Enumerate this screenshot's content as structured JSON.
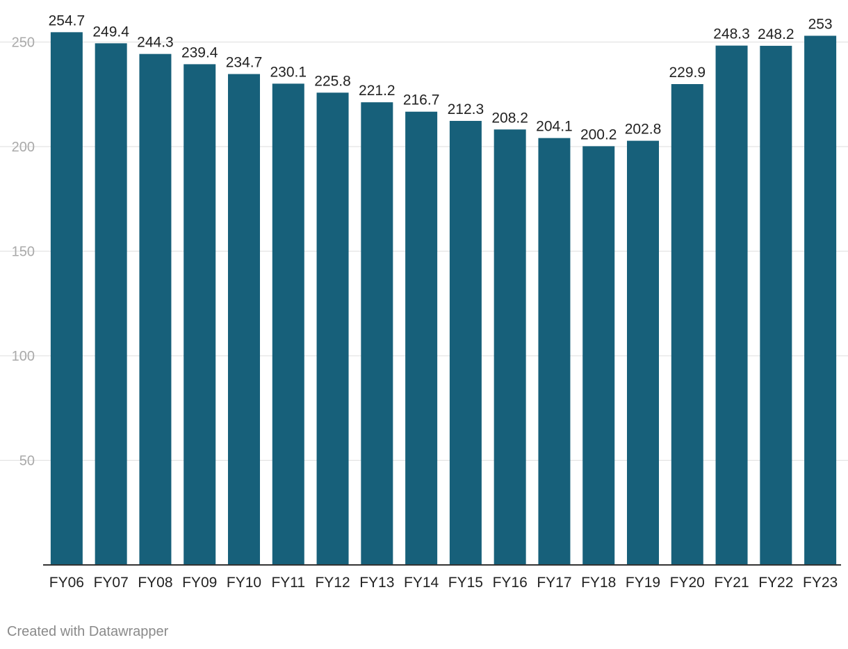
{
  "chart_data": {
    "type": "bar",
    "categories": [
      "FY06",
      "FY07",
      "FY08",
      "FY09",
      "FY10",
      "FY11",
      "FY12",
      "FY13",
      "FY14",
      "FY15",
      "FY16",
      "FY17",
      "FY18",
      "FY19",
      "FY20",
      "FY21",
      "FY22",
      "FY23"
    ],
    "values": [
      254.7,
      249.4,
      244.3,
      239.4,
      234.7,
      230.1,
      225.8,
      221.2,
      216.7,
      212.3,
      208.2,
      204.1,
      200.2,
      202.8,
      229.9,
      248.3,
      248.2,
      253
    ],
    "value_labels": [
      "254.7",
      "249.4",
      "244.3",
      "239.4",
      "234.7",
      "230.1",
      "225.8",
      "221.2",
      "216.7",
      "212.3",
      "208.2",
      "204.1",
      "200.2",
      "202.8",
      "229.9",
      "248.3",
      "248.2",
      "253"
    ],
    "y_ticks": [
      50,
      100,
      150,
      200,
      250
    ],
    "ylim": [
      0,
      262
    ],
    "grid": true,
    "colors": {
      "bar": "#17607a",
      "grid": "#e3e3e3",
      "axis": "#333333",
      "tick_label": "#aaaaaa",
      "value_label": "#222222",
      "category_label": "#222222"
    }
  },
  "footer": {
    "credit": "Created with Datawrapper"
  }
}
